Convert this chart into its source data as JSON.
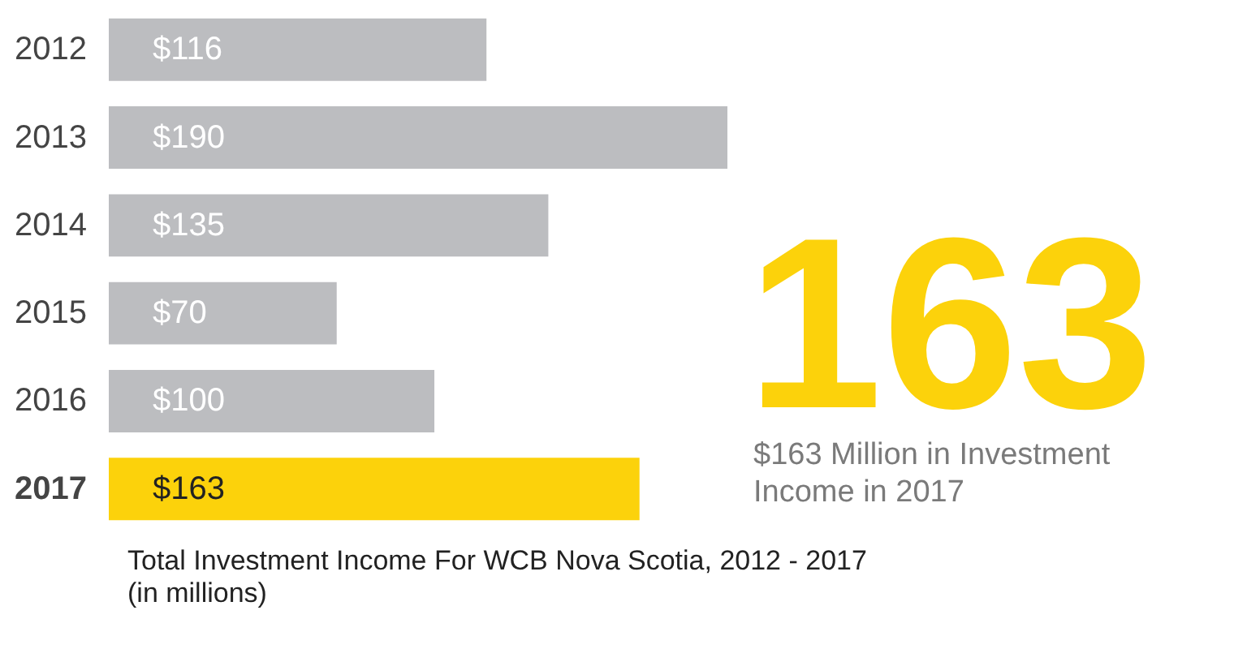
{
  "chart_data": {
    "type": "bar",
    "orientation": "horizontal",
    "title": "Total Investment Income For WCB Nova Scotia, 2012 - 2017",
    "subtitle": "(in millions)",
    "categories": [
      "2012",
      "2013",
      "2014",
      "2015",
      "2016",
      "2017"
    ],
    "values": [
      116,
      190,
      135,
      70,
      100,
      163
    ],
    "colors": [
      "#bcbdc0",
      "#bcbdc0",
      "#bcbdc0",
      "#bcbdc0",
      "#bcbdc0",
      "#fcd20b"
    ],
    "value_labels": [
      "$116",
      "$190",
      "$135",
      "$70",
      "$100",
      "$163"
    ],
    "annotations": [
      "163",
      "$163 Million in Investment Income in 2017"
    ]
  }
}
